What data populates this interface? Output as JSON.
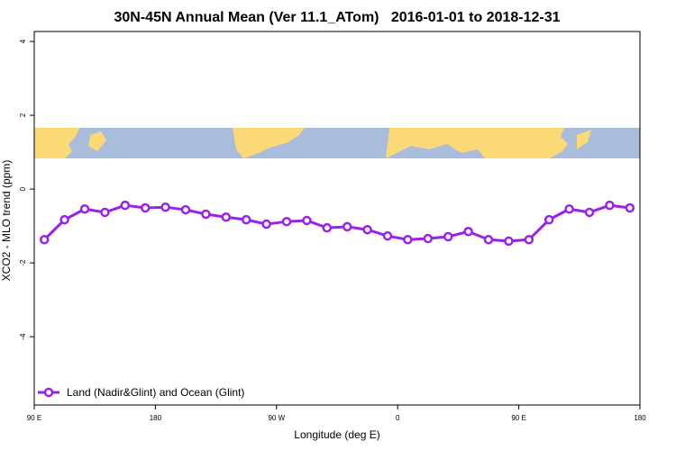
{
  "chart_data": {
    "type": "line",
    "title": "30N-45N Annual Mean (Ver 11.1_ATom)   2016-01-01 to 2018-12-31",
    "x_label": "Longitude (deg E)",
    "y_label": "XCO2 - MLO trend (ppm)",
    "x": [
      97.5,
      112.5,
      127.5,
      142.5,
      157.5,
      172.5,
      187.5,
      202.5,
      217.5,
      232.5,
      247.5,
      262.5,
      277.5,
      292.5,
      307.5,
      322.5,
      337.5,
      352.5,
      367.5,
      382.5,
      397.5,
      412.5,
      427.5,
      442.5,
      457.5,
      472.5,
      487.5,
      502.5,
      517.5,
      532.5
    ],
    "series": [
      {
        "name": "Land (Nadir&Glint) and Ocean (Glint)",
        "color": "#9a22e6",
        "values": [
          -1.37,
          -0.83,
          -0.54,
          -0.63,
          -0.44,
          -0.51,
          -0.49,
          -0.56,
          -0.68,
          -0.76,
          -0.83,
          -0.95,
          -0.88,
          -0.85,
          -1.05,
          -1.02,
          -1.1,
          -1.27,
          -1.37,
          -1.34,
          -1.29,
          -1.15,
          -1.37,
          -1.41,
          -1.37,
          -0.83,
          -0.54,
          -0.63,
          -0.44,
          -0.51
        ]
      }
    ],
    "xlim": [
      90,
      540
    ],
    "xticks": [
      {
        "value": 90,
        "label": "90 E"
      },
      180,
      {
        "value": 270,
        "label": "90 W"
      },
      {
        "value": 360,
        "label": "0"
      },
      {
        "value": 450,
        "label": "90 E"
      },
      {
        "value": 540,
        "label": "180"
      }
    ],
    "ylim": [
      -5.85,
      4.27
    ],
    "yticks": [
      -4,
      -2,
      0,
      2,
      4
    ],
    "legend": "bottom-left",
    "grid": false
  }
}
